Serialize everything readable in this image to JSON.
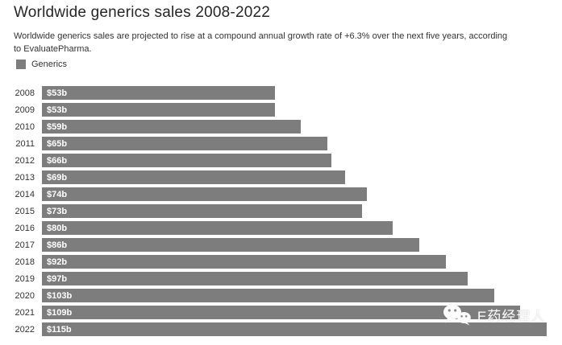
{
  "header": {
    "title": "Worldwide generics sales 2008-2022",
    "subtitle": "Worldwide generics sales are projected to rise at a compound annual growth rate of +6.3% over the next five years, according to EvaluatePharma."
  },
  "legend": {
    "label": "Generics",
    "swatch_color": "#7d7d7d"
  },
  "chart_data": {
    "type": "bar",
    "orientation": "horizontal",
    "title": "Worldwide generics sales 2008-2022",
    "subtitle": "Worldwide generics sales are projected to rise at a compound annual growth rate of +6.3% over the next five years, according to EvaluatePharma.",
    "series_name": "Generics",
    "categories": [
      "2008",
      "2009",
      "2010",
      "2011",
      "2012",
      "2013",
      "2014",
      "2015",
      "2016",
      "2017",
      "2018",
      "2019",
      "2020",
      "2021",
      "2022"
    ],
    "values": [
      53,
      53,
      59,
      65,
      66,
      69,
      74,
      73,
      80,
      86,
      92,
      97,
      103,
      109,
      115
    ],
    "data_labels": [
      "$53b",
      "$53b",
      "$59b",
      "$65b",
      "$66b",
      "$69b",
      "$74b",
      "$73b",
      "$80b",
      "$86b",
      "$92b",
      "$97b",
      "$103b",
      "$109b",
      "$115b"
    ],
    "unit": "billion USD",
    "xlim": [
      0,
      115
    ],
    "grid": false,
    "legend_position": "top-left",
    "bar_color": "#7d7d7d",
    "data_label_color": "#ffffff",
    "axis_label_color": "#333333"
  },
  "watermark": {
    "icon": "wechat-icon",
    "text": "E药经理人",
    "color": "#fbfbfb"
  }
}
